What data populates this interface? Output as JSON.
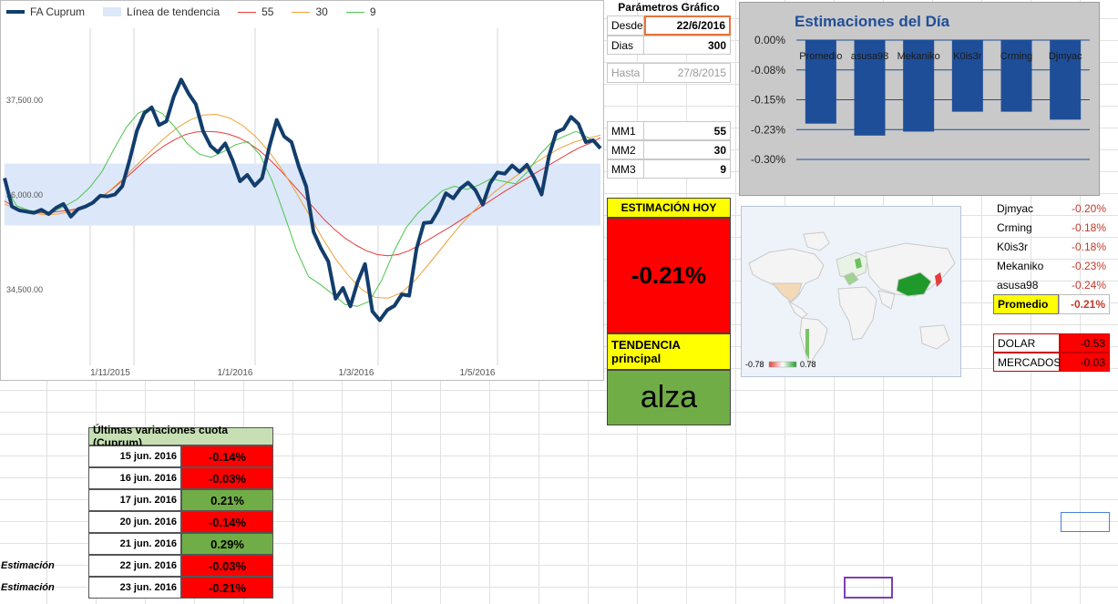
{
  "line_chart": {
    "legend": [
      {
        "label": "FA Cuprum",
        "color": "#123d6c",
        "kind": "line",
        "width": 4
      },
      {
        "label": "Línea de tendencia",
        "color": "#dce7f9",
        "kind": "band"
      },
      {
        "label": "55",
        "color": "#e33d3d",
        "kind": "line",
        "width": 1
      },
      {
        "label": "30",
        "color": "#f0a138",
        "kind": "line",
        "width": 1
      },
      {
        "label": "9",
        "color": "#4dc44d",
        "kind": "line",
        "width": 1
      }
    ],
    "y_ticks": [
      "37,500.00",
      "36,000.00",
      "34,500.00"
    ],
    "x_ticks": [
      "1/11/2015",
      "1/1/2016",
      "1/3/2016",
      "1/5/2016"
    ],
    "chart_data": {
      "type": "line",
      "x_range": [
        "27/8/2015",
        "22/6/2016"
      ],
      "y_ticks_values": [
        37500,
        36000,
        34500
      ],
      "trend_band": [
        35560,
        36540
      ],
      "series": [
        {
          "name": "FA Cuprum",
          "color": "#123d6c",
          "values": [
            36310,
            35860,
            35800,
            35780,
            35760,
            35810,
            35740,
            35840,
            35900,
            35700,
            35820,
            35860,
            35920,
            36030,
            36020,
            36050,
            36180,
            36600,
            37060,
            37340,
            37430,
            37150,
            37210,
            37600,
            37870,
            37650,
            37480,
            37050,
            36820,
            36720,
            36860,
            36590,
            36260,
            36360,
            36190,
            36310,
            36810,
            37230,
            36970,
            36880,
            36490,
            36180,
            35460,
            35200,
            34990,
            34400,
            34570,
            34280,
            34670,
            34950,
            34200,
            34060,
            34220,
            34290,
            34470,
            34450,
            35190,
            35600,
            35610,
            35810,
            36070,
            35990,
            36150,
            36240,
            36120,
            35890,
            36230,
            36400,
            36380,
            36510,
            36410,
            36520,
            36310,
            36050,
            36660,
            37040,
            37090,
            37280,
            37170,
            36880,
            36910,
            36780
          ]
        },
        {
          "name": "55",
          "color": "#e33d3d",
          "values": [
            35950,
            35840,
            35790,
            35760,
            35760,
            35780,
            35800,
            35830,
            35900,
            36000,
            36120,
            36260,
            36400,
            36560,
            36700,
            36820,
            36920,
            37000,
            37040,
            37050,
            37040,
            37010,
            36950,
            36860,
            36740,
            36590,
            36420,
            36230,
            36040,
            35850,
            35660,
            35500,
            35360,
            35250,
            35160,
            35100,
            35080,
            35100,
            35160,
            35250,
            35350,
            35450,
            35550,
            35660,
            35770,
            35880,
            35990,
            36100,
            36200,
            36300,
            36400,
            36500,
            36600,
            36700,
            36790,
            36860,
            36950
          ]
        },
        {
          "name": "30",
          "color": "#f0a138",
          "values": [
            35900,
            35810,
            35760,
            35730,
            35740,
            35780,
            35860,
            35970,
            36120,
            36310,
            36520,
            36730,
            36930,
            37100,
            37230,
            37310,
            37320,
            37260,
            37140,
            36960,
            36720,
            36430,
            36090,
            35730,
            35360,
            35030,
            34760,
            34540,
            34420,
            34410,
            34500,
            34690,
            34940,
            35200,
            35460,
            35700,
            35910,
            36090,
            36250,
            36400,
            36540,
            36670,
            36790,
            36880,
            36940,
            36990
          ]
        },
        {
          "name": "9",
          "color": "#4dc44d",
          "values": [
            36200,
            35870,
            35800,
            35770,
            35780,
            35870,
            35980,
            36160,
            36410,
            36770,
            37110,
            37340,
            37420,
            37330,
            37120,
            36860,
            36690,
            36640,
            36730,
            36840,
            36890,
            36680,
            36270,
            35730,
            35170,
            34750,
            34620,
            34470,
            34310,
            34280,
            34360,
            34690,
            35140,
            35520,
            35760,
            35940,
            36110,
            36180,
            36130,
            36200,
            36300,
            36260,
            36220,
            36410,
            36680,
            36880,
            36970,
            37050,
            36950,
            36800
          ]
        }
      ]
    }
  },
  "parametros": {
    "title": "Parámetros Gráfico",
    "desde_label": "Desde",
    "desde_value": "22/6/2016",
    "dias_label": "Dias",
    "dias_value": "300",
    "hasta_label": "Hasta",
    "hasta_value": "27/8/2015",
    "mm1_label": "MM1",
    "mm1_value": "55",
    "mm2_label": "MM2",
    "mm2_value": "30",
    "mm3_label": "MM3",
    "mm3_value": "9"
  },
  "estimacion": {
    "title": "ESTIMACIÓN HOY",
    "value": "-0.21%",
    "tendencia_label": "TENDENCIA principal",
    "tendencia_value": "alza",
    "colors": {
      "estimacion_bg": "#ff0000",
      "tendencia_bg": "#70ad47",
      "header_bg": "#ffff00"
    }
  },
  "estimaciones_chart": {
    "title": "Estimaciones del Día",
    "y_ticks": [
      "0.00%",
      "-0.08%",
      "-0.15%",
      "-0.23%",
      "-0.30%"
    ],
    "chart_data": {
      "type": "bar",
      "title": "Estimaciones del Día",
      "categories": [
        "Promedio",
        "asusa98",
        "Mekaniko",
        "K0is3r",
        "Crming",
        "Djmyac"
      ],
      "values": [
        -0.21,
        -0.24,
        -0.23,
        -0.18,
        -0.18,
        -0.2
      ],
      "ylim": [
        -0.3,
        0.0
      ],
      "bar_color": "#1f4e98"
    }
  },
  "map": {
    "scale_min": "-0.78",
    "scale_max": "0.78"
  },
  "users_table": {
    "rows": [
      {
        "name": "Djmyac",
        "value": "-0.20%"
      },
      {
        "name": "Crming",
        "value": "-0.18%"
      },
      {
        "name": "K0is3r",
        "value": "-0.18%"
      },
      {
        "name": "Mekaniko",
        "value": "-0.23%"
      },
      {
        "name": "asusa98",
        "value": "-0.24%"
      }
    ],
    "promedio_label": "Promedio",
    "promedio_value": "-0.21%"
  },
  "indicadores": {
    "dolar_label": "DOLAR",
    "dolar_value": "-0.53",
    "mercados_label": "MERCADOS",
    "mercados_value": "-0.03"
  },
  "variaciones": {
    "title": "Últimas variaciones cuota (Cuprum)",
    "rows": [
      {
        "tag": "",
        "date": "15 jun. 2016",
        "value": "-0.14%",
        "color": "#ff0000"
      },
      {
        "tag": "",
        "date": "16 jun. 2016",
        "value": "-0.03%",
        "color": "#ff0000"
      },
      {
        "tag": "",
        "date": "17 jun. 2016",
        "value": "0.21%",
        "color": "#70ad47"
      },
      {
        "tag": "",
        "date": "20 jun. 2016",
        "value": "-0.14%",
        "color": "#ff0000"
      },
      {
        "tag": "",
        "date": "21 jun. 2016",
        "value": "0.29%",
        "color": "#70ad47"
      },
      {
        "tag": "Estimación",
        "date": "22 jun. 2016",
        "value": "-0.03%",
        "color": "#ff0000"
      },
      {
        "tag": "Estimación",
        "date": "23 jun. 2016",
        "value": "-0.21%",
        "color": "#ff0000"
      }
    ]
  }
}
